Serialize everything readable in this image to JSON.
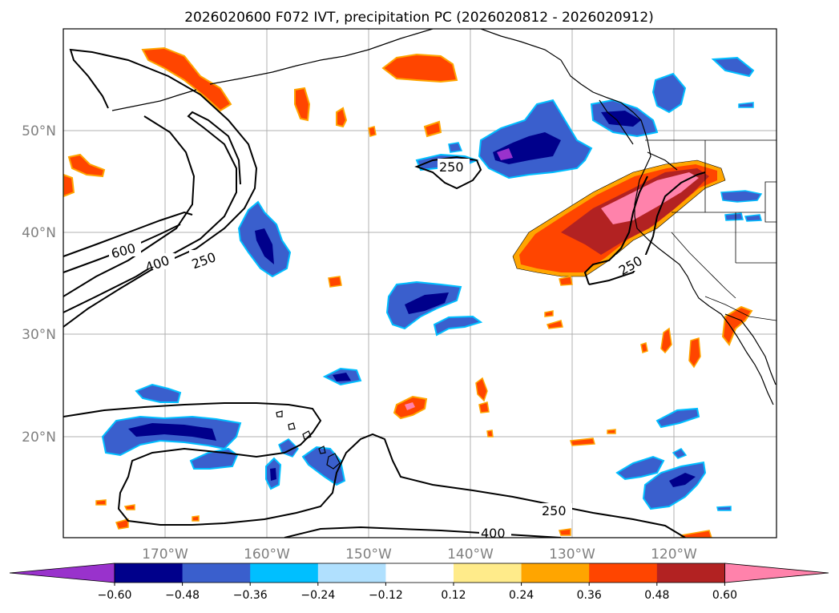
{
  "title": "2026020600 F072 IVT, precipitation PC (2026020812 - 2026020912)",
  "lat_labels": [
    "50°N",
    "40°N",
    "30°N",
    "20°N"
  ],
  "lon_labels": [
    "170°W",
    "160°W",
    "150°W",
    "140°W",
    "130°W",
    "120°W"
  ],
  "colorbar": {
    "colors": [
      "#9932cc",
      "#00008b",
      "#3a5fcd",
      "#00bfff",
      "#b0e0fe",
      "#ffffff",
      "#ffeb8a",
      "#ffa500",
      "#ff4500",
      "#b22222",
      "#ff82ab"
    ],
    "tick_labels": [
      "−0.60",
      "−0.48",
      "−0.36",
      "−0.24",
      "−0.12",
      "0.12",
      "0.24",
      "0.36",
      "0.48",
      "0.60"
    ]
  },
  "contour_labels": [
    "600",
    "400",
    "250",
    "250",
    "250",
    "250",
    "400"
  ]
}
